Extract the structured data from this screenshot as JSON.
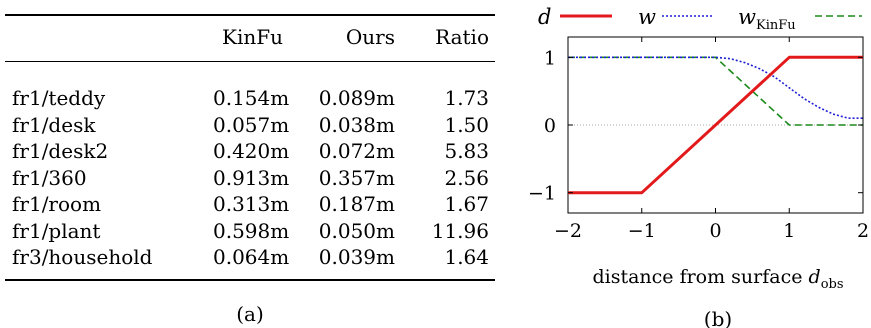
{
  "table": {
    "headers": [
      "",
      "KinFu",
      "Ours",
      "Ratio"
    ],
    "rows": [
      [
        "fr1/teddy",
        "0.154m",
        "0.089m",
        "1.73"
      ],
      [
        "fr1/desk",
        "0.057m",
        "0.038m",
        "1.50"
      ],
      [
        "fr1/desk2",
        "0.420m",
        "0.072m",
        "5.83"
      ],
      [
        "fr1/360",
        "0.913m",
        "0.357m",
        "2.56"
      ],
      [
        "fr1/room",
        "0.313m",
        "0.187m",
        "1.67"
      ],
      [
        "fr1/plant",
        "0.598m",
        "0.050m",
        "11.96"
      ],
      [
        "fr3/household",
        "0.064m",
        "0.039m",
        "1.64"
      ]
    ],
    "caption": "(a)"
  },
  "plot": {
    "caption": "(b)",
    "xlabel": "distance from surface",
    "xlabel_symbol": "d",
    "xlabel_sub": "obs",
    "legend": [
      {
        "symbol": "d",
        "sub": "",
        "color": "#e31a1c",
        "style": "solid"
      },
      {
        "symbol": "w",
        "sub": "",
        "color": "#1f1fd6",
        "style": "dotted"
      },
      {
        "symbol": "w",
        "sub": "KinFu",
        "color": "#1a8a1a",
        "style": "dashed"
      }
    ]
  },
  "chart_data": {
    "type": "line",
    "xlabel": "distance from surface d_obs",
    "xlim": [
      -2,
      2
    ],
    "ylim": [
      -1.3,
      1.3
    ],
    "xticks": [
      -2,
      -1,
      0,
      1,
      2
    ],
    "yticks": [
      -1,
      0,
      1
    ],
    "grid": false,
    "reference_line_y": 0,
    "series": [
      {
        "name": "d",
        "x": [
          -2,
          -1,
          1,
          2
        ],
        "y": [
          -1,
          -1,
          1,
          1
        ]
      },
      {
        "name": "w",
        "x": [
          -2,
          0,
          0.2,
          0.4,
          0.6,
          0.8,
          1.0,
          1.2,
          1.4,
          1.6,
          1.8,
          2
        ],
        "y": [
          1,
          1,
          0.98,
          0.92,
          0.83,
          0.71,
          0.55,
          0.39,
          0.26,
          0.16,
          0.1,
          0.1
        ]
      },
      {
        "name": "w_KinFu",
        "x": [
          -2,
          0,
          1,
          2
        ],
        "y": [
          1,
          1,
          0,
          0
        ]
      }
    ]
  }
}
